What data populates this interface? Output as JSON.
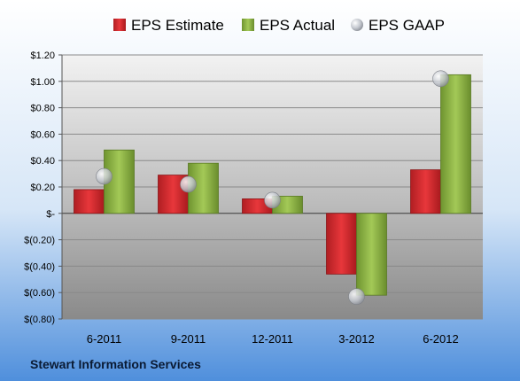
{
  "company": "Stewart Information Services",
  "colors": {
    "estimate": "#d9262b",
    "actual": "#8db43f",
    "gaap": "#b8bcc4"
  },
  "chart_data": {
    "type": "bar",
    "categories": [
      "6-2011",
      "9-2011",
      "12-2011",
      "3-2012",
      "6-2012"
    ],
    "series": [
      {
        "name": "EPS Estimate",
        "kind": "bar",
        "values": [
          0.18,
          0.29,
          0.11,
          -0.46,
          0.33
        ]
      },
      {
        "name": "EPS Actual",
        "kind": "bar",
        "values": [
          0.48,
          0.38,
          0.13,
          -0.62,
          1.05
        ]
      },
      {
        "name": "EPS GAAP",
        "kind": "marker",
        "values": [
          0.28,
          0.22,
          0.1,
          -0.63,
          1.02
        ]
      }
    ],
    "ylim": [
      -0.8,
      1.2
    ],
    "ytick_values": [
      1.2,
      1.0,
      0.8,
      0.6,
      0.4,
      0.2,
      0,
      -0.2,
      -0.4,
      -0.6,
      -0.8
    ],
    "ytick_labels": [
      "$1.20",
      "$1.00",
      "$0.80",
      "$0.60",
      "$0.40",
      "$0.20",
      "$-",
      "$(0.20)",
      "$(0.40)",
      "$(0.60)",
      "$(0.80)"
    ],
    "legend_position": "top",
    "grid": true
  }
}
